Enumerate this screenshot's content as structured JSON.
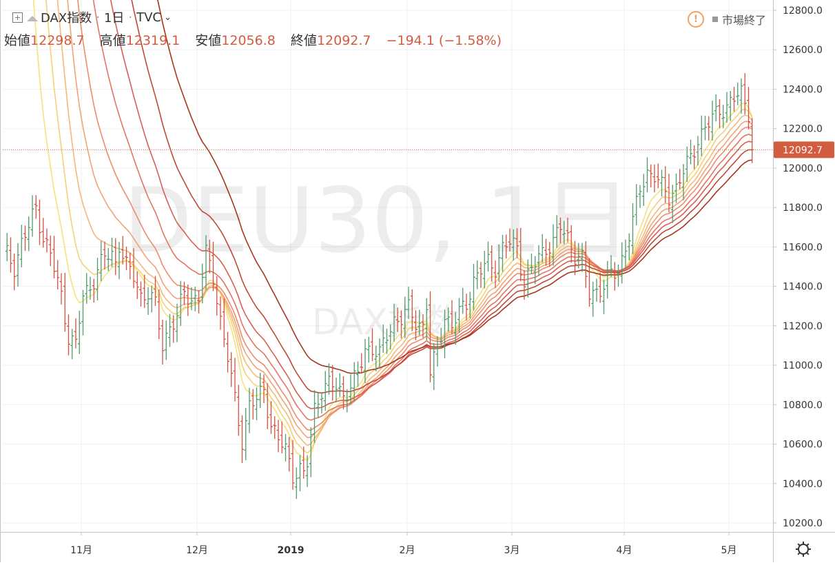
{
  "header": {
    "symbol": "DAX指数",
    "interval": "1日",
    "source": "TVC",
    "open_label": "始値",
    "open": "12298.7",
    "high_label": "高値",
    "high": "12319.1",
    "low_label": "安値",
    "low": "12056.8",
    "close_label": "終値",
    "close": "12092.7",
    "change": "−194.1 (−1.58%)",
    "market_status": "市場終了",
    "watermark_main": "DEU30, 1日",
    "watermark_sub": "DAX指数"
  },
  "colors": {
    "up": "#4f9a6a",
    "down": "#d3503b",
    "price_tag": "#d35c40",
    "ribbon": [
      "#f5e27a",
      "#f6cf79",
      "#f4b878",
      "#f2a275",
      "#ed8b6c",
      "#e47461",
      "#d75e52",
      "#c14836",
      "#a8341c"
    ]
  },
  "chart_data": {
    "type": "ohlc",
    "title": "DAX指数",
    "y_axis": {
      "min": 10200,
      "max": 12800,
      "ticks": [
        "12800.0",
        "12600.0",
        "12400.0",
        "12200.0",
        "12000.0",
        "11800.0",
        "11600.0",
        "11400.0",
        "11200.0",
        "11000.0",
        "10800.0",
        "10600.0",
        "10400.0",
        "10200.0"
      ]
    },
    "x_axis": {
      "ticks": [
        "11月",
        "12月",
        "2019",
        "2月",
        "3月",
        "4月",
        "5月"
      ]
    },
    "last_price": "12092.7",
    "series": [
      {
        "name": "DAX指数",
        "close_path": [
          [
            1,
            11560
          ],
          [
            3,
            11500
          ],
          [
            5,
            11620
          ],
          [
            7,
            11700
          ],
          [
            9,
            11800
          ],
          [
            11,
            11650
          ],
          [
            13,
            11560
          ],
          [
            16,
            11350
          ],
          [
            18,
            11150
          ],
          [
            20,
            11100
          ],
          [
            22,
            11350
          ],
          [
            24,
            11400
          ],
          [
            26,
            11480
          ],
          [
            28,
            11550
          ],
          [
            30,
            11560
          ],
          [
            31,
            11520
          ],
          [
            32,
            11620
          ],
          [
            34,
            11500
          ],
          [
            36,
            11450
          ],
          [
            38,
            11350
          ],
          [
            40,
            11370
          ],
          [
            42,
            11300
          ],
          [
            44,
            11100
          ],
          [
            46,
            11200
          ],
          [
            48,
            11240
          ],
          [
            50,
            11370
          ],
          [
            52,
            11330
          ],
          [
            54,
            11350
          ],
          [
            56,
            11560
          ],
          [
            58,
            11450
          ],
          [
            60,
            11230
          ],
          [
            62,
            11040
          ],
          [
            64,
            10820
          ],
          [
            66,
            10620
          ],
          [
            68,
            10800
          ],
          [
            70,
            10820
          ],
          [
            72,
            10880
          ],
          [
            74,
            10700
          ],
          [
            76,
            10620
          ],
          [
            78,
            10570
          ],
          [
            80,
            10450
          ],
          [
            82,
            10470
          ],
          [
            83,
            10440
          ],
          [
            84,
            10500
          ],
          [
            86,
            10780
          ],
          [
            88,
            10880
          ],
          [
            90,
            10900
          ],
          [
            92,
            10890
          ],
          [
            94,
            10850
          ],
          [
            96,
            10890
          ],
          [
            98,
            10950
          ],
          [
            100,
            11080
          ],
          [
            102,
            11090
          ],
          [
            104,
            11050
          ],
          [
            106,
            11150
          ],
          [
            108,
            11230
          ],
          [
            110,
            11240
          ],
          [
            112,
            11280
          ],
          [
            114,
            11220
          ],
          [
            116,
            11200
          ],
          [
            117,
            11310
          ],
          [
            118,
            10950
          ],
          [
            120,
            11080
          ],
          [
            122,
            11250
          ],
          [
            124,
            11200
          ],
          [
            126,
            11260
          ],
          [
            128,
            11320
          ],
          [
            130,
            11430
          ],
          [
            132,
            11480
          ],
          [
            134,
            11520
          ],
          [
            136,
            11500
          ],
          [
            138,
            11590
          ],
          [
            140,
            11620
          ],
          [
            142,
            11600
          ],
          [
            144,
            11420
          ],
          [
            146,
            11480
          ],
          [
            148,
            11550
          ],
          [
            150,
            11600
          ],
          [
            152,
            11620
          ],
          [
            154,
            11700
          ],
          [
            156,
            11650
          ],
          [
            158,
            11560
          ],
          [
            160,
            11530
          ],
          [
            162,
            11360
          ],
          [
            164,
            11380
          ],
          [
            166,
            11400
          ],
          [
            168,
            11460
          ],
          [
            170,
            11480
          ],
          [
            172,
            11600
          ],
          [
            174,
            11720
          ],
          [
            176,
            11900
          ],
          [
            178,
            11980
          ],
          [
            180,
            11960
          ],
          [
            182,
            11900
          ],
          [
            184,
            11860
          ],
          [
            186,
            11900
          ],
          [
            188,
            11980
          ],
          [
            190,
            12050
          ],
          [
            192,
            12150
          ],
          [
            194,
            12200
          ],
          [
            196,
            12250
          ],
          [
            198,
            12300
          ],
          [
            200,
            12310
          ],
          [
            202,
            12350
          ],
          [
            204,
            12380
          ],
          [
            206,
            12290
          ],
          [
            207,
            12092.7
          ]
        ]
      }
    ]
  }
}
